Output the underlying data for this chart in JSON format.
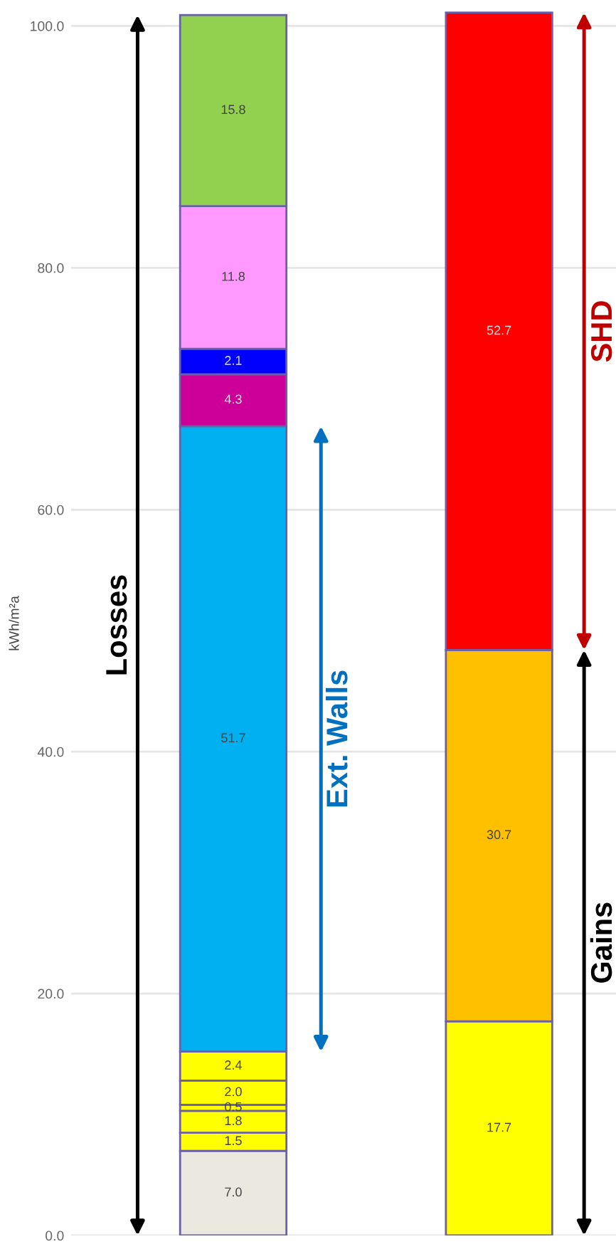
{
  "chart_data": {
    "type": "bar",
    "stacked": true,
    "ylabel": "kWh/m²a",
    "categories": [
      null,
      null
    ],
    "ylim": [
      0,
      101.2
    ],
    "yticks": [
      {
        "value": 0,
        "label": "0.0"
      },
      {
        "value": 20,
        "label": "20.0"
      },
      {
        "value": 40,
        "label": "40.0"
      },
      {
        "value": 60,
        "label": "60.0"
      },
      {
        "value": 80,
        "label": "80.0"
      },
      {
        "value": 100,
        "label": "100.0"
      }
    ],
    "grid": "y",
    "series": [
      {
        "color": "#ebe8df",
        "values": [
          7.0,
          null
        ],
        "value_labels": [
          "7.0",
          null
        ]
      },
      {
        "color": "#ffff00",
        "values": [
          1.5,
          null
        ],
        "value_labels": [
          "1.5",
          null
        ]
      },
      {
        "color": "#ffff00",
        "values": [
          1.8,
          null
        ],
        "value_labels": [
          "1.8",
          null
        ]
      },
      {
        "color": "#ffff00",
        "values": [
          0.5,
          null
        ],
        "value_labels": [
          "0.5",
          null
        ]
      },
      {
        "color": "#ffff00",
        "values": [
          2.0,
          null
        ],
        "value_labels": [
          "2.0",
          null
        ]
      },
      {
        "color": "#ffff00",
        "values": [
          2.4,
          null
        ],
        "value_labels": [
          "2.4",
          null
        ]
      },
      {
        "color": "#00b0f0",
        "values": [
          51.7,
          null
        ],
        "value_labels": [
          "51.7",
          null
        ]
      },
      {
        "color": "#cc0099",
        "values": [
          4.3,
          null
        ],
        "value_labels": [
          "4.3",
          null
        ]
      },
      {
        "color": "#0000ff",
        "values": [
          2.1,
          null
        ],
        "value_labels": [
          "2.1",
          null
        ]
      },
      {
        "color": "#ff99ff",
        "values": [
          11.8,
          null
        ],
        "value_labels": [
          "11.8",
          null
        ]
      },
      {
        "color": "#92d050",
        "values": [
          15.8,
          null
        ],
        "value_labels": [
          "15.8",
          null
        ]
      },
      {
        "color": "#ffff00",
        "values": [
          null,
          17.7
        ],
        "value_labels": [
          null,
          "17.7"
        ]
      },
      {
        "color": "#ffc000",
        "values": [
          null,
          30.7
        ],
        "value_labels": [
          null,
          "30.7"
        ]
      },
      {
        "color": "#ff0000",
        "values": [
          null,
          52.7
        ],
        "value_labels": [
          null,
          "52.7"
        ]
      }
    ],
    "annotations": [
      "Losses",
      "Ext. Walls",
      "SHD",
      "Gains"
    ]
  }
}
